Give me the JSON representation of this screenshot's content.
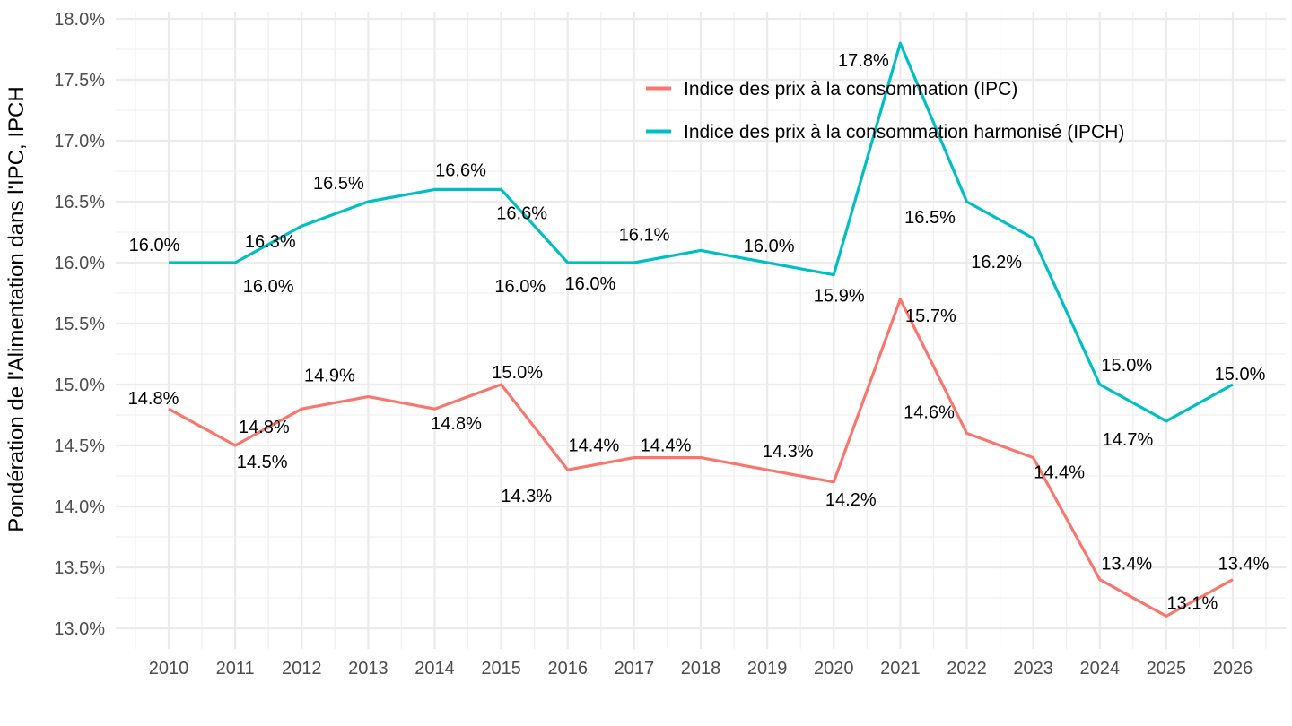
{
  "chart_data": {
    "type": "line",
    "title": "",
    "xlabel": "",
    "ylabel": "Pondération de l'Alimentation dans l'IPC, IPCH",
    "x": [
      2010,
      2011,
      2012,
      2013,
      2014,
      2015,
      2016,
      2017,
      2018,
      2019,
      2020,
      2021,
      2022,
      2023,
      2024,
      2025,
      2026
    ],
    "y_ticks": [
      13.0,
      13.5,
      14.0,
      14.5,
      15.0,
      15.5,
      16.0,
      16.5,
      17.0,
      17.5,
      18.0
    ],
    "y_tick_labels": [
      "13.0%",
      "13.5%",
      "14.0%",
      "14.5%",
      "15.0%",
      "15.5%",
      "16.0%",
      "16.5%",
      "17.0%",
      "17.5%",
      "18.0%"
    ],
    "ylim": [
      12.8,
      18.1
    ],
    "grid": true,
    "legend_position": "inside-top",
    "series": [
      {
        "name": "Indice des prix à la consommation (IPC)",
        "color": "#F8766D",
        "values": [
          14.8,
          14.5,
          14.8,
          14.9,
          14.8,
          15.0,
          14.3,
          14.4,
          14.4,
          14.3,
          14.2,
          15.7,
          14.6,
          14.4,
          13.4,
          13.1,
          13.4
        ],
        "labels": [
          "14.8%",
          "14.5%",
          "14.8%",
          "14.9%",
          "14.8%",
          "15.0%",
          "14.3%",
          "14.4%",
          "14.4%",
          "14.3%",
          "14.2%",
          "15.7%",
          "14.6%",
          "14.4%",
          "13.4%",
          "13.1%",
          "13.4%"
        ],
        "label_offsets": [
          [
            -17,
            -12
          ],
          [
            30,
            18
          ],
          [
            -42,
            20
          ],
          [
            -43,
            -24
          ],
          [
            24,
            16
          ],
          [
            18,
            -14
          ],
          [
            -46,
            29
          ],
          [
            -45,
            -14
          ],
          [
            -39,
            -14
          ],
          [
            23,
            -21
          ],
          [
            19,
            19
          ],
          [
            34,
            18
          ],
          [
            -42,
            -24
          ],
          [
            29,
            16
          ],
          [
            30,
            -18
          ],
          [
            29,
            -15
          ],
          [
            12,
            -18
          ]
        ]
      },
      {
        "name": "Indice des prix à la consommation harmonisé (IPCH)",
        "color": "#00BFC4",
        "values": [
          16.0,
          16.0,
          16.3,
          16.5,
          16.6,
          16.6,
          16.0,
          16.0,
          16.1,
          16.0,
          15.9,
          17.8,
          16.5,
          16.2,
          15.0,
          14.7,
          15.0
        ],
        "labels": [
          "16.0%",
          "16.0%",
          "16.3%",
          "16.5%",
          "16.6%",
          "16.6%",
          "16.0%",
          "16.0%",
          "16.1%",
          "16.0%",
          "15.9%",
          "17.8%",
          "16.5%",
          "16.2%",
          "15.0%",
          "14.7%",
          "15.0%"
        ],
        "label_offsets": [
          [
            -16,
            -20
          ],
          [
            37,
            26
          ],
          [
            -35,
            17
          ],
          [
            -33,
            -21
          ],
          [
            29,
            -22
          ],
          [
            23,
            26
          ],
          [
            -53,
            26
          ],
          [
            -49,
            23
          ],
          [
            -63,
            -18
          ],
          [
            2,
            -19
          ],
          [
            6,
            23
          ],
          [
            -41,
            19
          ],
          [
            -41,
            17
          ],
          [
            -41,
            26
          ],
          [
            30,
            -22
          ],
          [
            -43,
            20
          ],
          [
            8,
            -12
          ]
        ]
      }
    ],
    "colors": {
      "background": "#FFFFFF",
      "grid_major": "#EBEBEB",
      "grid_minor": "#F0F0F0",
      "axis_text": "#4D4D4D",
      "data_label_text": "#000000",
      "legend_text": "#000000",
      "axis_title_text": "#000000"
    }
  }
}
